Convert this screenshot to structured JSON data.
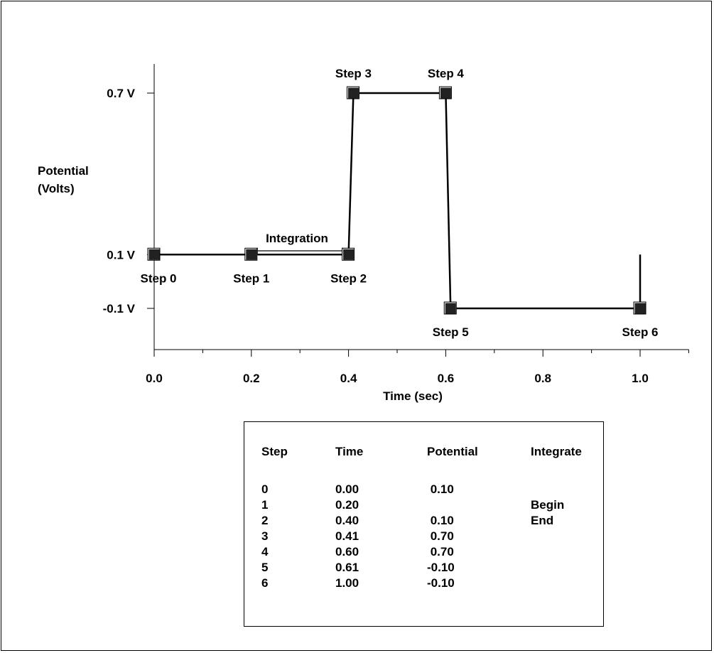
{
  "chart_data": {
    "type": "line",
    "x": [
      0.0,
      0.2,
      0.4,
      0.41,
      0.6,
      0.61,
      1.0
    ],
    "series": [
      {
        "values": [
          0.1,
          0.1,
          0.1,
          0.7,
          0.7,
          -0.1,
          -0.1
        ]
      }
    ],
    "xlabel": "Time (sec)",
    "ylabel": [
      "Potential",
      "(Volts)"
    ],
    "xticks": [
      "0.0",
      "0.2",
      "0.4",
      "0.6",
      "0.8",
      "1.0"
    ],
    "yticks": [
      {
        "value": 0.7,
        "label": "0.7 V"
      },
      {
        "value": 0.1,
        "label": "0.1 V"
      },
      {
        "value": -0.1,
        "label": "-0.1 V"
      }
    ],
    "xlim": [
      0.0,
      1.1
    ],
    "ylim": [
      -0.25,
      0.83
    ],
    "grid": false,
    "point_labels": [
      "Step 0",
      "Step 1",
      "Step 2",
      "Step 3",
      "Step 4",
      "Step 5",
      "Step 6"
    ],
    "annotations": [
      {
        "text": "Integration",
        "x_start": 0.2,
        "x_end": 0.4,
        "y": 0.23
      }
    ],
    "end_marker": {
      "x": 1.0,
      "y_from": -0.1,
      "y_to": 0.1
    }
  },
  "table": {
    "headers": [
      "Step",
      "Time",
      "Potential",
      "Integrate"
    ],
    "rows": [
      [
        "0",
        "0.00",
        " 0.10",
        ""
      ],
      [
        "1",
        "0.20",
        "",
        "Begin"
      ],
      [
        "2",
        "0.40",
        " 0.10",
        "End"
      ],
      [
        "3",
        "0.41",
        " 0.70",
        ""
      ],
      [
        "4",
        "0.60",
        " 0.70",
        ""
      ],
      [
        "5",
        "0.61",
        "-0.10",
        ""
      ],
      [
        "6",
        "1.00",
        "-0.10",
        ""
      ]
    ]
  }
}
